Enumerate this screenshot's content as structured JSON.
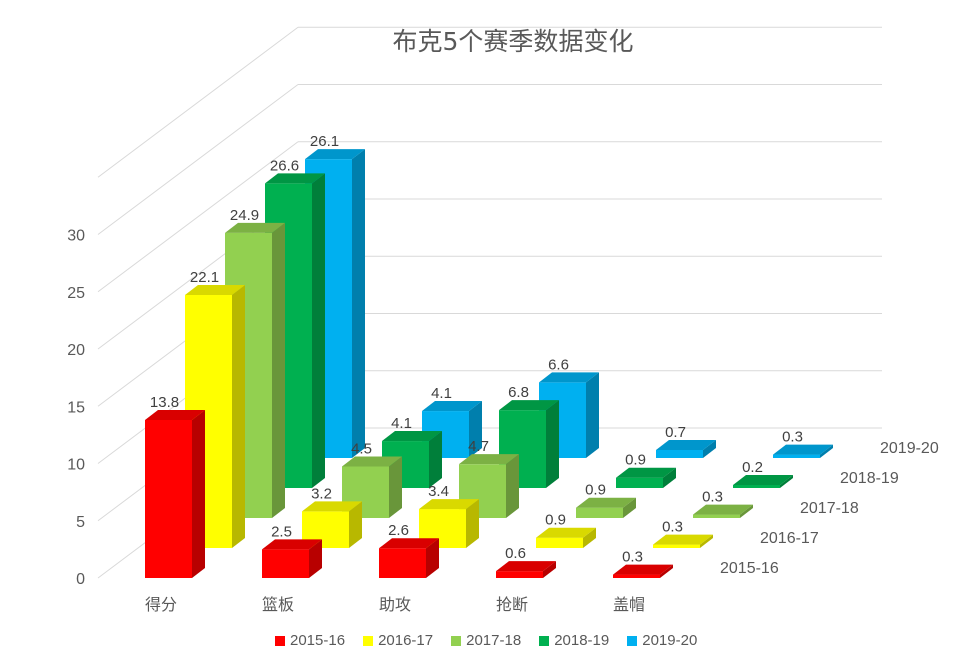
{
  "chart_data": {
    "type": "bar",
    "title": "布克5个赛季数据变化",
    "categories": [
      "得分",
      "篮板",
      "助攻",
      "抢断",
      "盖帽"
    ],
    "y_ticks": [
      "0",
      "5",
      "10",
      "15",
      "20",
      "25",
      "30"
    ],
    "ylim": [
      0,
      30
    ],
    "grid": true,
    "legend_position": "bottom",
    "series": [
      {
        "name": "2015-16",
        "color": "#FF0000",
        "values": [
          13.8,
          2.5,
          2.6,
          0.6,
          0.3
        ]
      },
      {
        "name": "2016-17",
        "color": "#FFFF00",
        "values": [
          22.1,
          3.2,
          3.4,
          0.9,
          0.3
        ]
      },
      {
        "name": "2017-18",
        "color": "#92D050",
        "values": [
          24.9,
          4.5,
          4.7,
          0.9,
          0.3
        ]
      },
      {
        "name": "2018-19",
        "color": "#00B050",
        "values": [
          26.6,
          4.1,
          6.8,
          0.9,
          0.2
        ]
      },
      {
        "name": "2019-20",
        "color": "#00B0F0",
        "values": [
          26.1,
          4.1,
          6.6,
          0.7,
          0.3
        ]
      }
    ]
  }
}
